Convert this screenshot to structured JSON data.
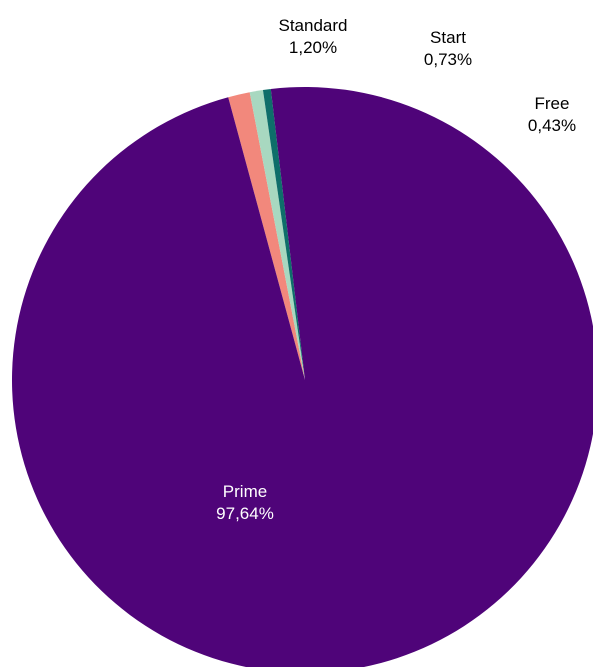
{
  "chart_data": {
    "type": "pie",
    "title": "",
    "slices": [
      {
        "label": "Prime",
        "value": 97.64,
        "display": "97,64%",
        "color": "#4f0479"
      },
      {
        "label": "Standard",
        "value": 1.2,
        "display": "1,20%",
        "color": "#f2887c"
      },
      {
        "label": "Start",
        "value": 0.73,
        "display": "0,73%",
        "color": "#a8d8c0"
      },
      {
        "label": "Free",
        "value": 0.43,
        "display": "0,43%",
        "color": "#0e6e6a"
      }
    ],
    "start_slice": "Standard",
    "legend": "none"
  }
}
